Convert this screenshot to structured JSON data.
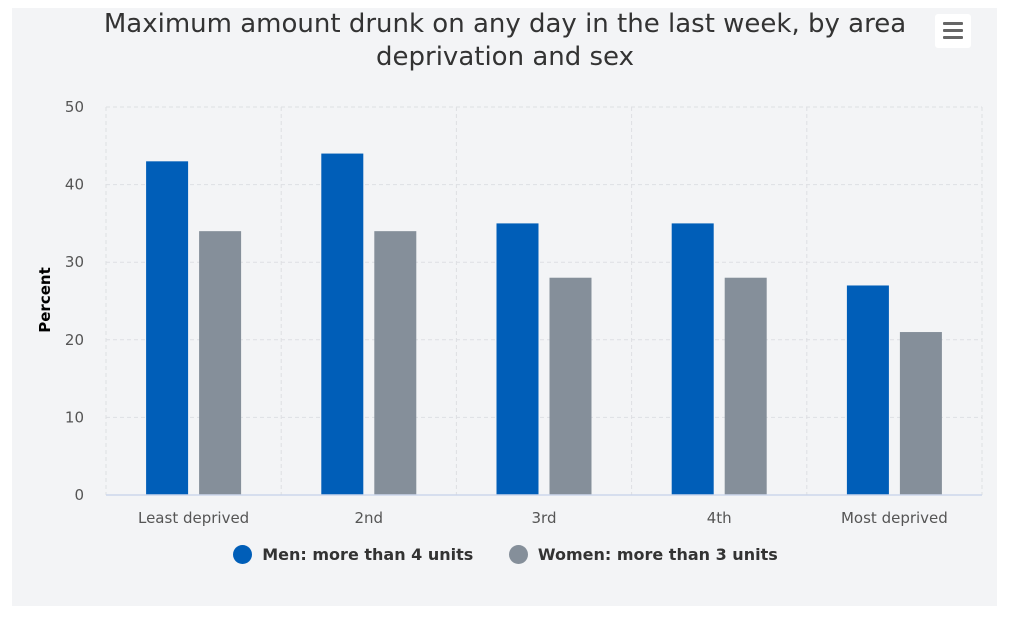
{
  "colors": {
    "men": "#005eb8",
    "women": "#858f9a",
    "panel": "#f3f4f6",
    "grid": "#dedfe3",
    "axis": "#ccd6eb"
  },
  "menu": {
    "icon": "hamburger-icon"
  },
  "chart_data": {
    "type": "bar",
    "title": "Maximum amount drunk on any day in the last week, by area deprivation and sex",
    "xlabel": "",
    "ylabel": "Percent",
    "ylim": [
      0,
      50
    ],
    "yticks": [
      0,
      10,
      20,
      30,
      40,
      50
    ],
    "grid": true,
    "legend": "bottom-center",
    "categories": [
      "Least deprived",
      "2nd",
      "3rd",
      "4th",
      "Most deprived"
    ],
    "series": [
      {
        "name": "Men: more than 4 units",
        "color": "#005eb8",
        "values": [
          43,
          44,
          35,
          35,
          27
        ]
      },
      {
        "name": "Women: more than 3 units",
        "color": "#858f9a",
        "values": [
          34,
          34,
          28,
          28,
          21
        ]
      }
    ]
  }
}
